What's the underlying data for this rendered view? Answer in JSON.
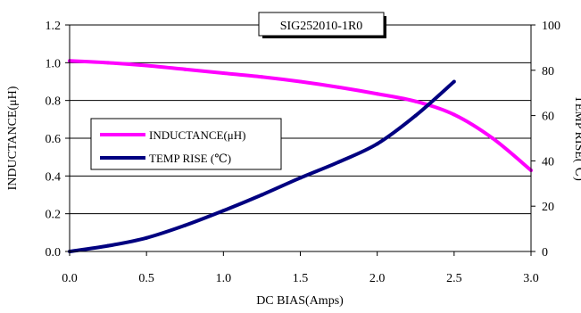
{
  "chart_data": {
    "type": "line",
    "title": "SIG252010-1R0",
    "xlabel": "DC BIAS(Amps)",
    "ylabel_left": "INDUCTANCE(μH)",
    "ylabel_right": "TEMP RISE(℃)",
    "xlim": [
      0,
      3.0
    ],
    "ylim_left": [
      0,
      1.2
    ],
    "ylim_right": [
      0,
      100
    ],
    "x_ticks": [
      "0.0",
      "0.5",
      "1.0",
      "1.5",
      "2.0",
      "2.5",
      "3.0"
    ],
    "y_left_ticks": [
      "0.0",
      "0.2",
      "0.4",
      "0.6",
      "0.8",
      "1.0",
      "1.2"
    ],
    "y_right_ticks": [
      "0",
      "20",
      "40",
      "60",
      "80",
      "100"
    ],
    "grid": "horizontal",
    "legend_position": "center-left",
    "series": [
      {
        "name": "INDUCTANCE(μH)",
        "axis": "left",
        "color": "#ff00ff",
        "x": [
          0.0,
          0.25,
          0.5,
          0.75,
          1.0,
          1.25,
          1.5,
          1.75,
          2.0,
          2.25,
          2.5,
          2.75,
          3.0
        ],
        "values": [
          1.01,
          1.0,
          0.985,
          0.965,
          0.945,
          0.925,
          0.9,
          0.87,
          0.835,
          0.795,
          0.725,
          0.6,
          0.43
        ]
      },
      {
        "name": "TEMP RISE (℃)",
        "axis": "right",
        "color": "#000080",
        "x": [
          0.0,
          0.25,
          0.5,
          0.75,
          1.0,
          1.25,
          1.5,
          1.75,
          2.0,
          2.25,
          2.5
        ],
        "values": [
          0,
          2.5,
          6,
          11.5,
          18,
          25,
          32.5,
          39.5,
          47.5,
          60,
          75
        ]
      }
    ]
  }
}
